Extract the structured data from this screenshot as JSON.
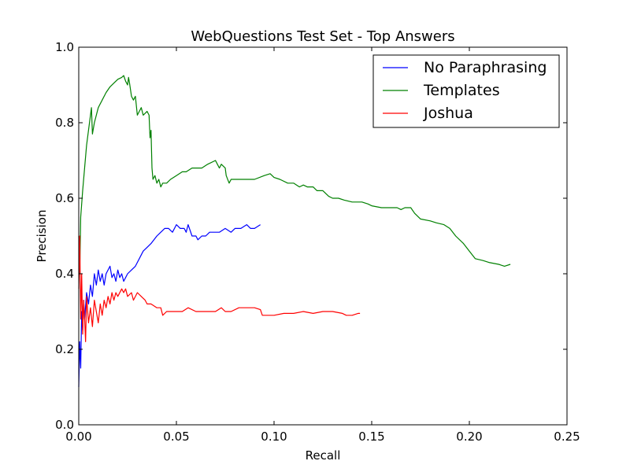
{
  "chart_data": {
    "type": "line",
    "title": "WebQuestions Test Set - Top Answers",
    "xlabel": "Recall",
    "ylabel": "Precision",
    "xlim": [
      0,
      0.25
    ],
    "ylim": [
      0,
      1.0
    ],
    "xticks": [
      "0.00",
      "0.05",
      "0.10",
      "0.15",
      "0.20",
      "0.25"
    ],
    "yticks": [
      "0.0",
      "0.2",
      "0.4",
      "0.6",
      "0.8",
      "1.0"
    ],
    "grid": false,
    "legend_position": "top-right",
    "series": [
      {
        "name": "No Paraphrasing",
        "color": "#0000ff",
        "points": [
          [
            0.0,
            0.1
          ],
          [
            0.0005,
            0.22
          ],
          [
            0.001,
            0.15
          ],
          [
            0.0015,
            0.3
          ],
          [
            0.002,
            0.25
          ],
          [
            0.0025,
            0.33
          ],
          [
            0.003,
            0.28
          ],
          [
            0.004,
            0.35
          ],
          [
            0.005,
            0.32
          ],
          [
            0.006,
            0.37
          ],
          [
            0.007,
            0.34
          ],
          [
            0.008,
            0.4
          ],
          [
            0.009,
            0.37
          ],
          [
            0.01,
            0.41
          ],
          [
            0.011,
            0.38
          ],
          [
            0.012,
            0.4
          ],
          [
            0.013,
            0.37
          ],
          [
            0.014,
            0.4
          ],
          [
            0.016,
            0.42
          ],
          [
            0.017,
            0.39
          ],
          [
            0.018,
            0.4
          ],
          [
            0.019,
            0.38
          ],
          [
            0.02,
            0.41
          ],
          [
            0.021,
            0.39
          ],
          [
            0.022,
            0.4
          ],
          [
            0.023,
            0.38
          ],
          [
            0.024,
            0.39
          ],
          [
            0.025,
            0.4
          ],
          [
            0.027,
            0.41
          ],
          [
            0.029,
            0.42
          ],
          [
            0.031,
            0.44
          ],
          [
            0.033,
            0.46
          ],
          [
            0.035,
            0.47
          ],
          [
            0.037,
            0.48
          ],
          [
            0.04,
            0.5
          ],
          [
            0.042,
            0.51
          ],
          [
            0.044,
            0.52
          ],
          [
            0.046,
            0.52
          ],
          [
            0.048,
            0.51
          ],
          [
            0.05,
            0.53
          ],
          [
            0.052,
            0.52
          ],
          [
            0.054,
            0.52
          ],
          [
            0.055,
            0.51
          ],
          [
            0.056,
            0.53
          ],
          [
            0.058,
            0.5
          ],
          [
            0.06,
            0.5
          ],
          [
            0.061,
            0.49
          ],
          [
            0.063,
            0.5
          ],
          [
            0.065,
            0.5
          ],
          [
            0.067,
            0.51
          ],
          [
            0.07,
            0.51
          ],
          [
            0.072,
            0.51
          ],
          [
            0.075,
            0.52
          ],
          [
            0.078,
            0.51
          ],
          [
            0.08,
            0.52
          ],
          [
            0.083,
            0.52
          ],
          [
            0.086,
            0.53
          ],
          [
            0.088,
            0.52
          ],
          [
            0.09,
            0.52
          ],
          [
            0.093,
            0.53
          ]
        ]
      },
      {
        "name": "Templates",
        "color": "#008000",
        "points": [
          [
            0.0,
            0.5
          ],
          [
            0.0005,
            0.4
          ],
          [
            0.001,
            0.55
          ],
          [
            0.002,
            0.62
          ],
          [
            0.003,
            0.68
          ],
          [
            0.004,
            0.74
          ],
          [
            0.005,
            0.78
          ],
          [
            0.006,
            0.82
          ],
          [
            0.0065,
            0.84
          ],
          [
            0.007,
            0.77
          ],
          [
            0.008,
            0.8
          ],
          [
            0.01,
            0.84
          ],
          [
            0.012,
            0.86
          ],
          [
            0.014,
            0.88
          ],
          [
            0.016,
            0.895
          ],
          [
            0.018,
            0.905
          ],
          [
            0.02,
            0.915
          ],
          [
            0.022,
            0.92
          ],
          [
            0.023,
            0.925
          ],
          [
            0.024,
            0.91
          ],
          [
            0.025,
            0.9
          ],
          [
            0.0255,
            0.92
          ],
          [
            0.026,
            0.905
          ],
          [
            0.027,
            0.87
          ],
          [
            0.028,
            0.86
          ],
          [
            0.029,
            0.87
          ],
          [
            0.03,
            0.82
          ],
          [
            0.031,
            0.83
          ],
          [
            0.032,
            0.84
          ],
          [
            0.033,
            0.82
          ],
          [
            0.035,
            0.83
          ],
          [
            0.036,
            0.82
          ],
          [
            0.0365,
            0.76
          ],
          [
            0.037,
            0.78
          ],
          [
            0.0375,
            0.68
          ],
          [
            0.038,
            0.65
          ],
          [
            0.039,
            0.66
          ],
          [
            0.04,
            0.64
          ],
          [
            0.041,
            0.65
          ],
          [
            0.042,
            0.63
          ],
          [
            0.043,
            0.64
          ],
          [
            0.045,
            0.64
          ],
          [
            0.047,
            0.65
          ],
          [
            0.05,
            0.66
          ],
          [
            0.053,
            0.67
          ],
          [
            0.055,
            0.67
          ],
          [
            0.058,
            0.68
          ],
          [
            0.06,
            0.68
          ],
          [
            0.063,
            0.68
          ],
          [
            0.066,
            0.69
          ],
          [
            0.07,
            0.7
          ],
          [
            0.071,
            0.69
          ],
          [
            0.072,
            0.68
          ],
          [
            0.073,
            0.69
          ],
          [
            0.075,
            0.68
          ],
          [
            0.0755,
            0.66
          ],
          [
            0.077,
            0.64
          ],
          [
            0.078,
            0.65
          ],
          [
            0.08,
            0.65
          ],
          [
            0.085,
            0.65
          ],
          [
            0.09,
            0.65
          ],
          [
            0.095,
            0.66
          ],
          [
            0.098,
            0.665
          ],
          [
            0.1,
            0.655
          ],
          [
            0.103,
            0.65
          ],
          [
            0.107,
            0.64
          ],
          [
            0.11,
            0.64
          ],
          [
            0.113,
            0.63
          ],
          [
            0.115,
            0.635
          ],
          [
            0.117,
            0.63
          ],
          [
            0.12,
            0.63
          ],
          [
            0.122,
            0.62
          ],
          [
            0.125,
            0.62
          ],
          [
            0.128,
            0.605
          ],
          [
            0.13,
            0.6
          ],
          [
            0.133,
            0.6
          ],
          [
            0.136,
            0.595
          ],
          [
            0.14,
            0.59
          ],
          [
            0.145,
            0.59
          ],
          [
            0.148,
            0.585
          ],
          [
            0.15,
            0.58
          ],
          [
            0.155,
            0.575
          ],
          [
            0.16,
            0.575
          ],
          [
            0.163,
            0.575
          ],
          [
            0.165,
            0.57
          ],
          [
            0.167,
            0.575
          ],
          [
            0.17,
            0.575
          ],
          [
            0.172,
            0.56
          ],
          [
            0.175,
            0.545
          ],
          [
            0.18,
            0.54
          ],
          [
            0.183,
            0.535
          ],
          [
            0.187,
            0.53
          ],
          [
            0.19,
            0.52
          ],
          [
            0.193,
            0.5
          ],
          [
            0.197,
            0.48
          ],
          [
            0.2,
            0.46
          ],
          [
            0.203,
            0.44
          ],
          [
            0.207,
            0.435
          ],
          [
            0.21,
            0.43
          ],
          [
            0.215,
            0.425
          ],
          [
            0.218,
            0.42
          ],
          [
            0.221,
            0.425
          ]
        ]
      },
      {
        "name": "Joshua",
        "color": "#ff0000",
        "points": [
          [
            0.0,
            0.36
          ],
          [
            0.0005,
            0.5
          ],
          [
            0.001,
            0.28
          ],
          [
            0.0015,
            0.4
          ],
          [
            0.002,
            0.24
          ],
          [
            0.0025,
            0.33
          ],
          [
            0.003,
            0.28
          ],
          [
            0.0035,
            0.22
          ],
          [
            0.004,
            0.34
          ],
          [
            0.005,
            0.27
          ],
          [
            0.006,
            0.31
          ],
          [
            0.007,
            0.26
          ],
          [
            0.008,
            0.33
          ],
          [
            0.009,
            0.3
          ],
          [
            0.01,
            0.27
          ],
          [
            0.011,
            0.32
          ],
          [
            0.012,
            0.29
          ],
          [
            0.013,
            0.33
          ],
          [
            0.014,
            0.31
          ],
          [
            0.015,
            0.34
          ],
          [
            0.016,
            0.32
          ],
          [
            0.017,
            0.35
          ],
          [
            0.018,
            0.33
          ],
          [
            0.019,
            0.35
          ],
          [
            0.02,
            0.34
          ],
          [
            0.022,
            0.36
          ],
          [
            0.023,
            0.35
          ],
          [
            0.024,
            0.36
          ],
          [
            0.025,
            0.34
          ],
          [
            0.027,
            0.35
          ],
          [
            0.028,
            0.33
          ],
          [
            0.03,
            0.35
          ],
          [
            0.032,
            0.34
          ],
          [
            0.034,
            0.33
          ],
          [
            0.035,
            0.32
          ],
          [
            0.037,
            0.32
          ],
          [
            0.04,
            0.31
          ],
          [
            0.042,
            0.31
          ],
          [
            0.043,
            0.29
          ],
          [
            0.045,
            0.3
          ],
          [
            0.048,
            0.3
          ],
          [
            0.05,
            0.3
          ],
          [
            0.053,
            0.3
          ],
          [
            0.056,
            0.31
          ],
          [
            0.06,
            0.3
          ],
          [
            0.063,
            0.3
          ],
          [
            0.067,
            0.3
          ],
          [
            0.07,
            0.3
          ],
          [
            0.073,
            0.31
          ],
          [
            0.075,
            0.3
          ],
          [
            0.078,
            0.3
          ],
          [
            0.082,
            0.31
          ],
          [
            0.086,
            0.31
          ],
          [
            0.09,
            0.31
          ],
          [
            0.093,
            0.305
          ],
          [
            0.094,
            0.29
          ],
          [
            0.097,
            0.29
          ],
          [
            0.1,
            0.29
          ],
          [
            0.105,
            0.295
          ],
          [
            0.11,
            0.295
          ],
          [
            0.115,
            0.3
          ],
          [
            0.12,
            0.295
          ],
          [
            0.125,
            0.3
          ],
          [
            0.13,
            0.3
          ],
          [
            0.135,
            0.295
          ],
          [
            0.137,
            0.29
          ],
          [
            0.14,
            0.29
          ],
          [
            0.143,
            0.295
          ],
          [
            0.144,
            0.295
          ]
        ]
      }
    ]
  }
}
